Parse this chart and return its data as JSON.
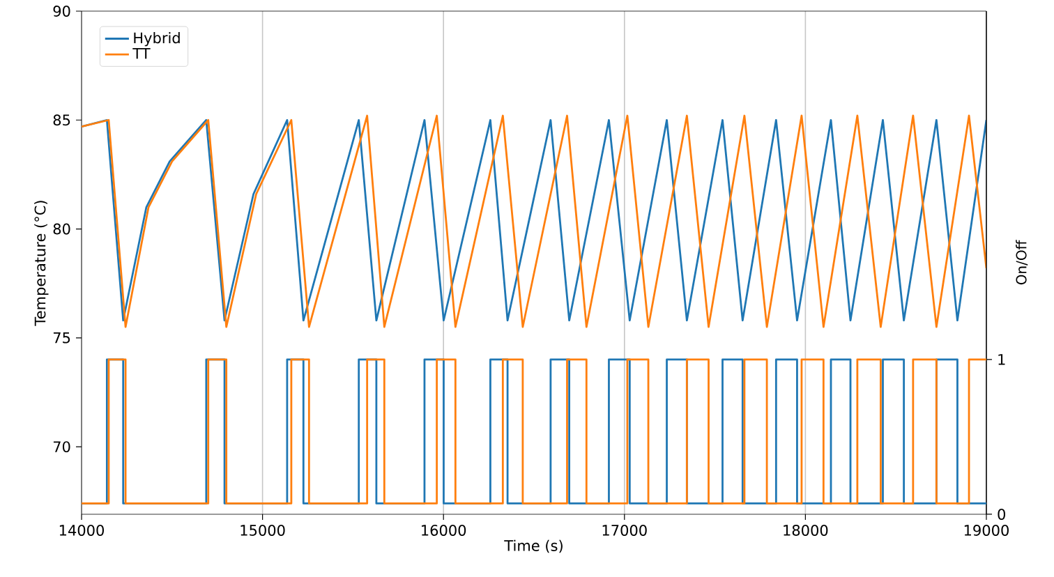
{
  "chart_data": {
    "type": "line",
    "xlabel": "Time (s)",
    "ylabel": "Temperature (°C)",
    "y2label": "On/Off",
    "xlim": [
      14000,
      19000
    ],
    "xticks": [
      14000,
      15000,
      16000,
      17000,
      18000,
      19000
    ],
    "ylim": [
      66.9,
      90
    ],
    "yticks": [
      70,
      75,
      80,
      85,
      90
    ],
    "y2lim": [
      0,
      3.25
    ],
    "y2ticks": [
      0,
      1
    ],
    "grid": "x",
    "legend": "top left",
    "series": [
      {
        "name": "Hybrid",
        "color": "#1f77b4",
        "x": [
          14000,
          14140,
          14230,
          14358,
          14487,
          14689,
          14790,
          14950,
          15136,
          15226,
          15532,
          15629,
          15895,
          16001,
          16259,
          16354,
          16592,
          16695,
          16914,
          17029,
          17234,
          17345,
          17542,
          17653,
          17838,
          17954,
          18141,
          18249,
          18428,
          18544,
          18724,
          18840,
          19000
        ],
        "values": [
          84.7,
          85,
          75.8,
          81.0,
          83.1,
          85,
          75.8,
          81.6,
          85,
          75.8,
          85,
          75.8,
          85,
          75.8,
          85,
          75.8,
          85,
          75.8,
          85,
          75.8,
          85,
          75.8,
          85,
          75.8,
          85,
          75.8,
          85,
          75.8,
          85,
          75.8,
          85,
          75.8,
          85
        ]
      },
      {
        "name": "TT",
        "color": "#ff7f0e",
        "x": [
          14000,
          14150,
          14243,
          14370,
          14500,
          14700,
          14800,
          14965,
          15159,
          15257,
          15578,
          15673,
          15963,
          16066,
          16328,
          16438,
          16683,
          16790,
          17016,
          17132,
          17345,
          17465,
          17663,
          17787,
          17979,
          18100,
          18287,
          18416,
          18595,
          18724,
          18904,
          19000
        ],
        "values": [
          84.7,
          85,
          75.5,
          81.0,
          83.1,
          85,
          75.5,
          81.6,
          85,
          75.5,
          85.2,
          75.5,
          85.2,
          75.5,
          85.2,
          75.5,
          85.2,
          75.5,
          85.2,
          75.5,
          85.2,
          75.5,
          85.2,
          75.5,
          85.2,
          75.5,
          85.2,
          75.5,
          85.2,
          75.5,
          85.2,
          78.2
        ]
      },
      {
        "color": "#1f77b4",
        "type": "step",
        "axis": "y2",
        "x": [
          14000,
          14140,
          14230,
          14689,
          14790,
          15136,
          15226,
          15532,
          15629,
          15895,
          16001,
          16259,
          16354,
          16592,
          16695,
          16914,
          17029,
          17234,
          17345,
          17542,
          17653,
          17838,
          17954,
          18141,
          18249,
          18428,
          18544,
          18724,
          18840,
          19000
        ],
        "values": [
          0.07,
          1,
          0.07,
          1,
          0.07,
          1,
          0.07,
          1,
          0.07,
          1,
          0.07,
          1,
          0.07,
          1,
          0.07,
          1,
          0.07,
          1,
          0.07,
          1,
          0.07,
          1,
          0.07,
          1,
          0.07,
          1,
          0.07,
          1,
          0.07,
          0.07
        ]
      },
      {
        "color": "#ff7f0e",
        "type": "step",
        "axis": "y2",
        "x": [
          14000,
          14150,
          14243,
          14700,
          14800,
          15159,
          15257,
          15578,
          15673,
          15963,
          16066,
          16328,
          16438,
          16683,
          16790,
          17016,
          17132,
          17345,
          17465,
          17663,
          17787,
          17979,
          18100,
          18287,
          18416,
          18595,
          18724,
          18904,
          19000
        ],
        "values": [
          0.07,
          1,
          0.07,
          1,
          0.07,
          1,
          0.07,
          1,
          0.07,
          1,
          0.07,
          1,
          0.07,
          1,
          0.07,
          1,
          0.07,
          1,
          0.07,
          1,
          0.07,
          1,
          0.07,
          1,
          0.07,
          1,
          0.07,
          1,
          1
        ]
      }
    ]
  }
}
